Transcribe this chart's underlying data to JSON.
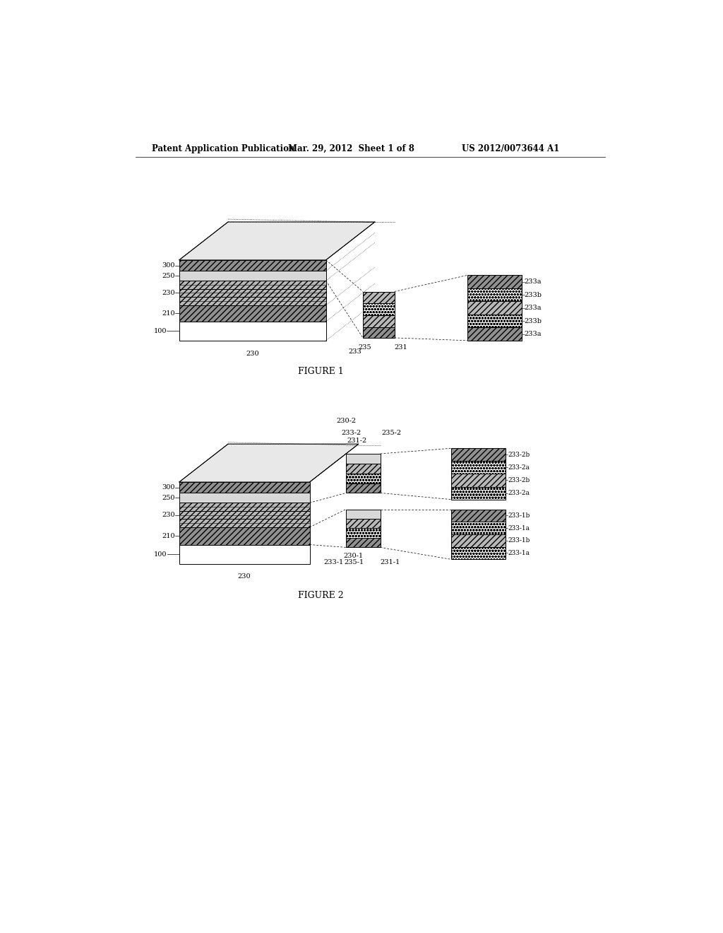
{
  "bg_color": "#ffffff",
  "header_text": "Patent Application Publication",
  "header_date": "Mar. 29, 2012  Sheet 1 of 8",
  "header_patent": "US 2012/0073644 A1",
  "figure1_label": "FIGURE 1",
  "figure2_label": "FIGURE 2",
  "lw": 0.7,
  "fs_label": 7.0,
  "fs_caption": 9.0,
  "hatch_diag": "////",
  "hatch_dot": "oooo",
  "fc_diag_dark": "#909090",
  "fc_diag_mid": "#b8b8b8",
  "fc_dot": "#ffffff",
  "fc_light": "#d8d8d8",
  "fc_white": "#ffffff",
  "ec": "#000000"
}
